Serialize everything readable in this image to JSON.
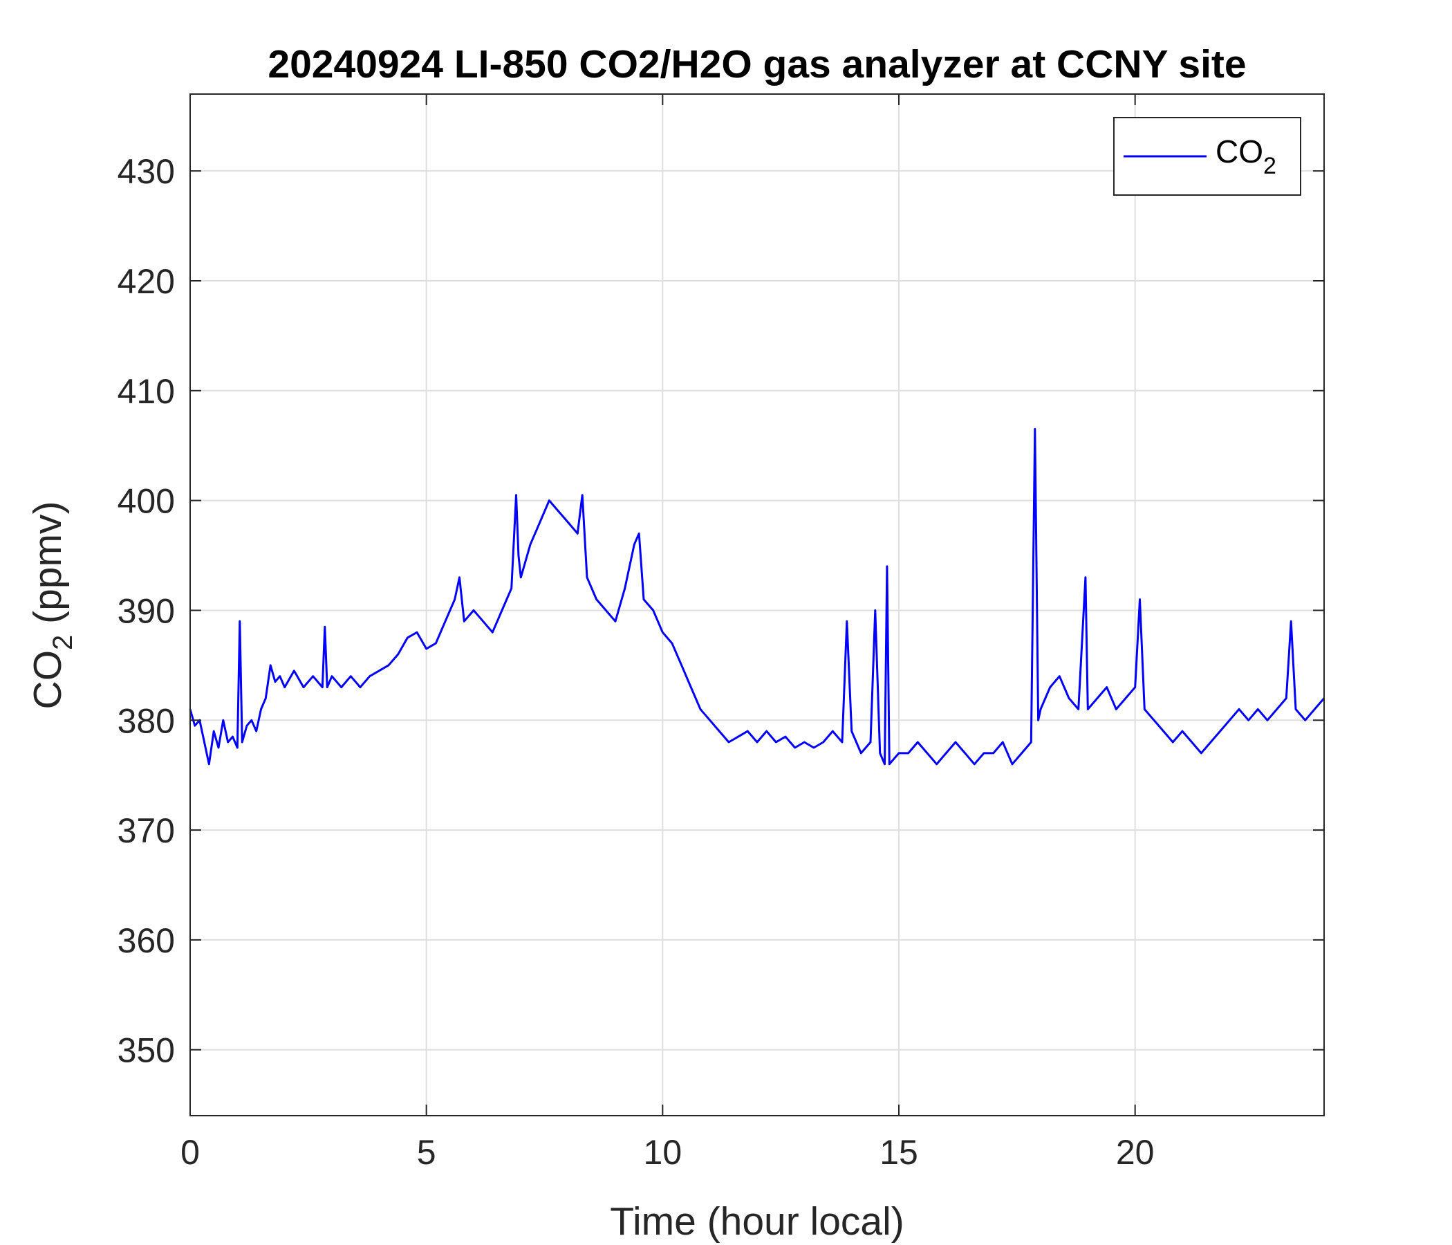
{
  "chart_data": {
    "type": "line",
    "title": "20240924 LI-850 CO2/H2O gas analyzer at CCNY site",
    "xlabel": "Time (hour local)",
    "ylabel": {
      "base": "CO",
      "sub": "2",
      "rest": " (ppmv)"
    },
    "xlim": [
      0,
      24
    ],
    "ylim": [
      344,
      437
    ],
    "xticks": [
      0,
      5,
      10,
      15,
      20
    ],
    "yticks": [
      350,
      360,
      370,
      380,
      390,
      400,
      410,
      420,
      430
    ],
    "grid": true,
    "legend_placement": "top-right",
    "series": [
      {
        "name": {
          "base": "CO",
          "sub": "2"
        },
        "color": "#0000ff",
        "x": [
          0,
          0.1,
          0.2,
          0.3,
          0.4,
          0.5,
          0.6,
          0.7,
          0.8,
          0.9,
          1.0,
          1.05,
          1.1,
          1.2,
          1.3,
          1.4,
          1.5,
          1.6,
          1.7,
          1.8,
          1.9,
          2.0,
          2.2,
          2.4,
          2.6,
          2.8,
          2.85,
          2.9,
          3.0,
          3.2,
          3.4,
          3.6,
          3.8,
          4.0,
          4.2,
          4.4,
          4.6,
          4.8,
          5.0,
          5.2,
          5.4,
          5.6,
          5.7,
          5.8,
          6.0,
          6.2,
          6.4,
          6.6,
          6.7,
          6.8,
          6.9,
          6.95,
          7.0,
          7.2,
          7.4,
          7.6,
          7.8,
          8.0,
          8.2,
          8.3,
          8.4,
          8.6,
          8.8,
          9.0,
          9.2,
          9.4,
          9.5,
          9.6,
          9.8,
          10.0,
          10.2,
          10.4,
          10.6,
          10.8,
          11.0,
          11.2,
          11.4,
          11.6,
          11.8,
          12.0,
          12.2,
          12.4,
          12.6,
          12.8,
          13.0,
          13.2,
          13.4,
          13.6,
          13.8,
          13.9,
          14.0,
          14.2,
          14.4,
          14.5,
          14.6,
          14.7,
          14.75,
          14.8,
          15.0,
          15.2,
          15.4,
          15.6,
          15.8,
          16.0,
          16.2,
          16.4,
          16.6,
          16.8,
          17.0,
          17.2,
          17.4,
          17.6,
          17.8,
          17.88,
          17.95,
          18.0,
          18.2,
          18.4,
          18.6,
          18.8,
          18.95,
          19.0,
          19.2,
          19.4,
          19.6,
          19.8,
          20.0,
          20.1,
          20.2,
          20.4,
          20.6,
          20.8,
          21.0,
          21.2,
          21.4,
          21.6,
          21.8,
          22.0,
          22.2,
          22.4,
          22.6,
          22.8,
          23.0,
          23.2,
          23.3,
          23.4,
          23.6,
          23.8,
          24.0
        ],
        "y": [
          381,
          379.5,
          380,
          378,
          376,
          379,
          377.5,
          380,
          378,
          378.5,
          377.5,
          389,
          378,
          379.5,
          380,
          379,
          381,
          382,
          385,
          383.5,
          384,
          383,
          384.5,
          383,
          384,
          383,
          388.5,
          383,
          384,
          383,
          384,
          383,
          384,
          384.5,
          385,
          386,
          387.5,
          388,
          386.5,
          387,
          389,
          391,
          393,
          389,
          390,
          389,
          388,
          390,
          391,
          392,
          400.5,
          395,
          393,
          396,
          398,
          400,
          399,
          398,
          397,
          400.5,
          393,
          391,
          390,
          389,
          392,
          396,
          397,
          391,
          390,
          388,
          387,
          385,
          383,
          381,
          380,
          379,
          378,
          378.5,
          379,
          378,
          379,
          378,
          378.5,
          377.5,
          378,
          377.5,
          378,
          379,
          378,
          389,
          379,
          377,
          378,
          390,
          377,
          376,
          394,
          376,
          377,
          377,
          378,
          377,
          376,
          377,
          378,
          377,
          376,
          377,
          377,
          378,
          376,
          377,
          378,
          406.5,
          380,
          381,
          383,
          384,
          382,
          381,
          393,
          381,
          382,
          383,
          381,
          382,
          383,
          391,
          381,
          380,
          379,
          378,
          379,
          378,
          377,
          378,
          379,
          380,
          381,
          380,
          381,
          380,
          381,
          382,
          389,
          381,
          380,
          381,
          382
        ]
      }
    ]
  }
}
